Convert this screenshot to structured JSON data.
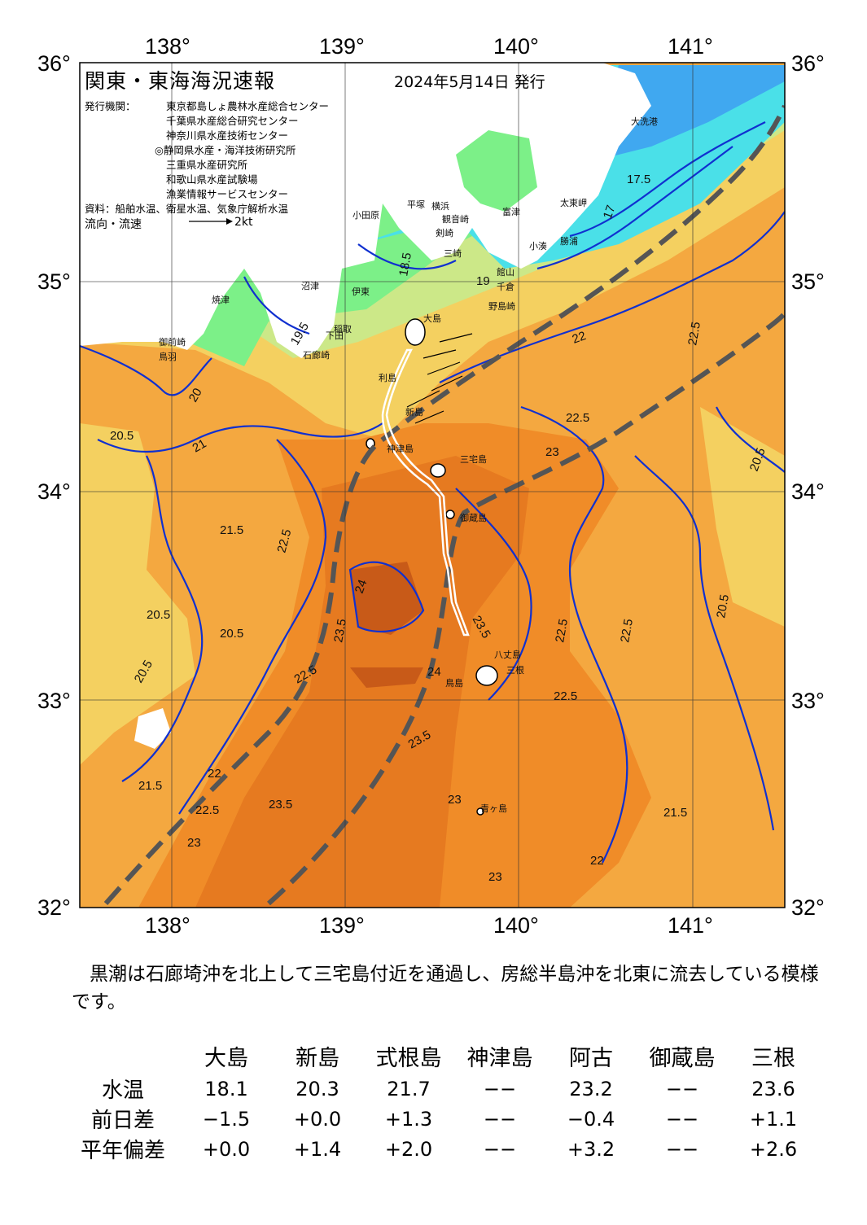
{
  "header": {
    "title": "関東・東海海況速報",
    "date": "2024年5月14日 発行",
    "issuers_label": "発行機関：",
    "issuers": [
      "東京都島しょ農林水産総合センター",
      "千葉県水産総合研究センター",
      "神奈川県水産技術センター",
      "◎静岡県水産・海洋技術研究所",
      "三重県水産研究所",
      "和歌山県水産試験場",
      "漁業情報サービスセンター"
    ],
    "source": "資料：船舶水温、衛星水温、気象庁解析水温",
    "legend_flow": "流向・流速",
    "legend_speed": "2kt"
  },
  "map": {
    "lon_ticks": [
      "138°",
      "139°",
      "140°",
      "141°"
    ],
    "lat_ticks": [
      "36°",
      "35°",
      "34°",
      "33°",
      "32°"
    ],
    "isotherm_labels": [
      "17.5",
      "17",
      "18.5",
      "19",
      "19.5",
      "20",
      "20.5",
      "21",
      "21.5",
      "22",
      "22.5",
      "23",
      "23.5",
      "24"
    ],
    "place_names": [
      "大洗港",
      "太東岬",
      "勝浦",
      "小湊",
      "富津",
      "平塚",
      "横浜",
      "観音崎",
      "剣崎",
      "三崎",
      "館山",
      "千倉",
      "野島崎",
      "大島",
      "利島",
      "新島",
      "神津島",
      "三宅島",
      "御蔵島",
      "八丈島",
      "青ヶ島",
      "鳥島",
      "三根",
      "小田原",
      "伊東",
      "稲取",
      "下田",
      "石廊崎",
      "御前崎",
      "焼津",
      "沼津",
      "鳥羽"
    ],
    "colors": {
      "water_18": "#4ae0e8",
      "water_17": "#40a8f0",
      "water_19": "#7cf088",
      "water_20": "#cce888",
      "water_21": "#f4d060",
      "water_22": "#f4a840",
      "water_23": "#f08c28",
      "water_24": "#d86418",
      "land": "#ffffff",
      "isotherm": "#1030d0",
      "kuroshio": "#555555"
    }
  },
  "comment": "黒潮は石廊埼沖を北上して三宅島付近を通過し、房総半島沖を北東に流去している模様です。",
  "table": {
    "columns": [
      "大島",
      "新島",
      "式根島",
      "神津島",
      "阿古",
      "御蔵島",
      "三根"
    ],
    "rows": [
      {
        "label": "水温",
        "values": [
          "18.1",
          "20.3",
          "21.7",
          "−−",
          "23.2",
          "−−",
          "23.6"
        ]
      },
      {
        "label": "前日差",
        "values": [
          "−1.5",
          "+0.0",
          "+1.3",
          "−−",
          "−0.4",
          "−−",
          "+1.1"
        ]
      },
      {
        "label": "平年偏差",
        "values": [
          "+0.0",
          "+1.4",
          "+2.0",
          "−−",
          "+3.2",
          "−−",
          "+2.6"
        ]
      }
    ]
  }
}
